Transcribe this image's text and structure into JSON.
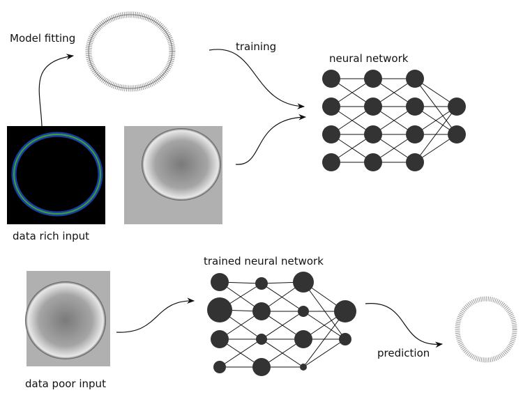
{
  "training_stage": {
    "fitting_label": "Model fitting",
    "training_label": "training",
    "network_label": "neural network",
    "input_label": "data rich input"
  },
  "prediction_stage": {
    "network_label": "trained neural network",
    "input_label": "data poor input",
    "output_label": "prediction"
  }
}
